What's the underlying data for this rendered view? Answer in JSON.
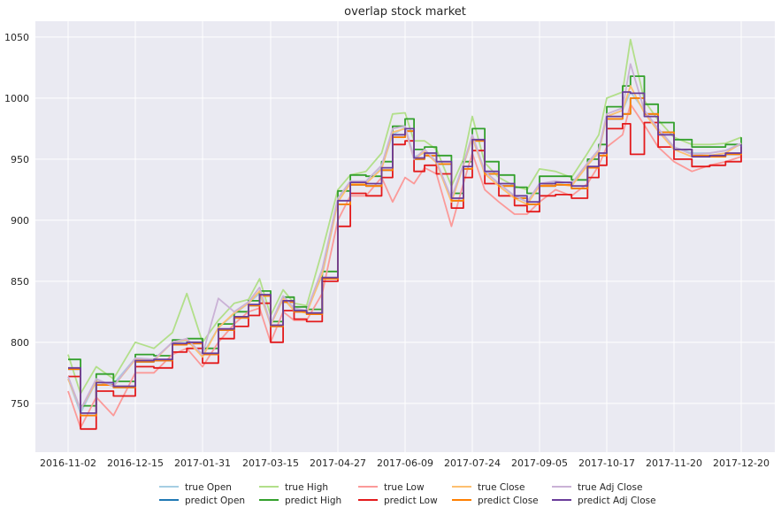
{
  "chart_data": {
    "type": "line",
    "title": "overlap stock market",
    "xlabel": "",
    "ylabel": "",
    "ylim": [
      710,
      1063
    ],
    "grid": true,
    "legend_position": "bottom-center",
    "x_ticks": [
      "2016-11-02",
      "2016-12-15",
      "2017-01-31",
      "2017-03-15",
      "2017-04-27",
      "2017-06-09",
      "2017-07-24",
      "2017-09-05",
      "2017-10-17",
      "2017-11-20",
      "2017-12-20"
    ],
    "y_ticks": [
      750,
      800,
      850,
      900,
      950,
      1000,
      1050
    ],
    "x": [
      "2016-11-02",
      "2016-11-10",
      "2016-11-20",
      "2016-12-01",
      "2016-12-15",
      "2016-12-28",
      "2017-01-10",
      "2017-01-20",
      "2017-01-31",
      "2017-02-10",
      "2017-02-20",
      "2017-03-01",
      "2017-03-08",
      "2017-03-15",
      "2017-03-23",
      "2017-03-30",
      "2017-04-07",
      "2017-04-17",
      "2017-04-27",
      "2017-05-05",
      "2017-05-15",
      "2017-05-25",
      "2017-06-01",
      "2017-06-09",
      "2017-06-15",
      "2017-06-22",
      "2017-06-30",
      "2017-07-10",
      "2017-07-18",
      "2017-07-24",
      "2017-08-01",
      "2017-08-10",
      "2017-08-20",
      "2017-08-28",
      "2017-09-05",
      "2017-09-15",
      "2017-09-25",
      "2017-10-05",
      "2017-10-12",
      "2017-10-17",
      "2017-10-25",
      "2017-10-29",
      "2017-11-05",
      "2017-11-12",
      "2017-11-20",
      "2017-11-28",
      "2017-12-06",
      "2017-12-13",
      "2017-12-20"
    ],
    "series": [
      {
        "name": "true Open",
        "color": "#a6cee3",
        "values": [
          770,
          742,
          768,
          766,
          787,
          786,
          800,
          801,
          790,
          812,
          823,
          832,
          840,
          815,
          835,
          827,
          825,
          855,
          915,
          932,
          930,
          943,
          970,
          976,
          952,
          955,
          948,
          918,
          945,
          967,
          940,
          930,
          920,
          915,
          930,
          931,
          928,
          945,
          955,
          985,
          990,
          1005,
          990,
          975,
          960,
          955,
          955,
          957,
          962
        ]
      },
      {
        "name": "predict Open",
        "color": "#1f78b4",
        "values": [
          778,
          740,
          765,
          763,
          784,
          785,
          798,
          799,
          790,
          810,
          820,
          830,
          838,
          813,
          833,
          825,
          823,
          852,
          913,
          929,
          928,
          941,
          968,
          973,
          950,
          953,
          946,
          916,
          942,
          965,
          938,
          928,
          918,
          913,
          928,
          929,
          926,
          943,
          953,
          983,
          987,
          1000,
          987,
          972,
          958,
          953,
          952,
          954,
          960
        ]
      },
      {
        "name": "true High",
        "color": "#b2df8a",
        "values": [
          790,
          758,
          780,
          770,
          800,
          795,
          808,
          840,
          800,
          818,
          832,
          835,
          852,
          822,
          843,
          832,
          830,
          875,
          925,
          937,
          940,
          955,
          987,
          988,
          965,
          965,
          958,
          928,
          950,
          985,
          947,
          935,
          928,
          925,
          942,
          940,
          935,
          955,
          970,
          1000,
          1005,
          1048,
          998,
          982,
          968,
          962,
          962,
          963,
          968
        ]
      },
      {
        "name": "predict High",
        "color": "#33a02c",
        "values": [
          786,
          748,
          774,
          768,
          790,
          789,
          802,
          803,
          795,
          815,
          825,
          834,
          842,
          817,
          837,
          829,
          827,
          858,
          924,
          937,
          936,
          948,
          977,
          983,
          958,
          960,
          953,
          922,
          948,
          975,
          948,
          937,
          927,
          922,
          936,
          936,
          933,
          950,
          962,
          993,
          1010,
          1018,
          995,
          980,
          966,
          960,
          960,
          962,
          968
        ]
      },
      {
        "name": "true Low",
        "color": "#fb9a99",
        "values": [
          760,
          730,
          755,
          740,
          775,
          775,
          790,
          795,
          780,
          800,
          815,
          825,
          828,
          800,
          825,
          818,
          818,
          840,
          900,
          920,
          920,
          935,
          915,
          935,
          930,
          943,
          938,
          895,
          930,
          955,
          925,
          915,
          905,
          905,
          915,
          925,
          920,
          930,
          945,
          960,
          970,
          995,
          978,
          960,
          948,
          940,
          945,
          948,
          952
        ]
      },
      {
        "name": "predict Low",
        "color": "#e31a1c",
        "values": [
          772,
          729,
          760,
          756,
          780,
          779,
          792,
          795,
          783,
          803,
          813,
          822,
          832,
          800,
          826,
          819,
          817,
          850,
          895,
          922,
          920,
          935,
          962,
          965,
          940,
          945,
          938,
          910,
          935,
          957,
          930,
          920,
          912,
          907,
          920,
          921,
          918,
          935,
          945,
          975,
          979,
          954,
          980,
          960,
          950,
          944,
          945,
          948,
          957
        ]
      },
      {
        "name": "true Close",
        "color": "#fdbf6f",
        "values": [
          770,
          745,
          768,
          764,
          786,
          785,
          800,
          802,
          788,
          812,
          824,
          832,
          842,
          814,
          836,
          826,
          824,
          856,
          915,
          930,
          930,
          942,
          972,
          975,
          950,
          956,
          947,
          915,
          945,
          968,
          938,
          928,
          918,
          913,
          928,
          930,
          928,
          945,
          956,
          985,
          990,
          1010,
          988,
          973,
          958,
          952,
          953,
          955,
          963
        ]
      },
      {
        "name": "predict Close",
        "color": "#ff7f00",
        "values": [
          778,
          740,
          765,
          763,
          784,
          785,
          798,
          799,
          790,
          810,
          820,
          830,
          838,
          813,
          833,
          825,
          823,
          852,
          913,
          929,
          928,
          941,
          968,
          973,
          950,
          953,
          946,
          916,
          942,
          965,
          938,
          928,
          918,
          913,
          928,
          929,
          926,
          943,
          953,
          983,
          987,
          1000,
          987,
          972,
          958,
          953,
          952,
          954,
          960
        ]
      },
      {
        "name": "true Adj Close",
        "color": "#cab2d6",
        "values": [
          772,
          745,
          770,
          764,
          787,
          786,
          800,
          803,
          790,
          836,
          825,
          833,
          845,
          815,
          838,
          828,
          826,
          860,
          918,
          932,
          932,
          945,
          975,
          977,
          950,
          958,
          948,
          918,
          946,
          970,
          940,
          930,
          920,
          915,
          930,
          932,
          930,
          947,
          958,
          987,
          992,
          1028,
          990,
          975,
          960,
          954,
          955,
          957,
          963
        ]
      },
      {
        "name": "predict Adj Close",
        "color": "#6a3d9a",
        "values": [
          779,
          742,
          767,
          764,
          785,
          786,
          799,
          800,
          791,
          811,
          821,
          831,
          839,
          814,
          834,
          826,
          824,
          853,
          916,
          931,
          930,
          943,
          970,
          975,
          951,
          955,
          948,
          918,
          944,
          966,
          940,
          930,
          920,
          915,
          930,
          931,
          928,
          944,
          955,
          985,
          1005,
          1004,
          985,
          970,
          958,
          952,
          953,
          955,
          962
        ]
      }
    ]
  }
}
